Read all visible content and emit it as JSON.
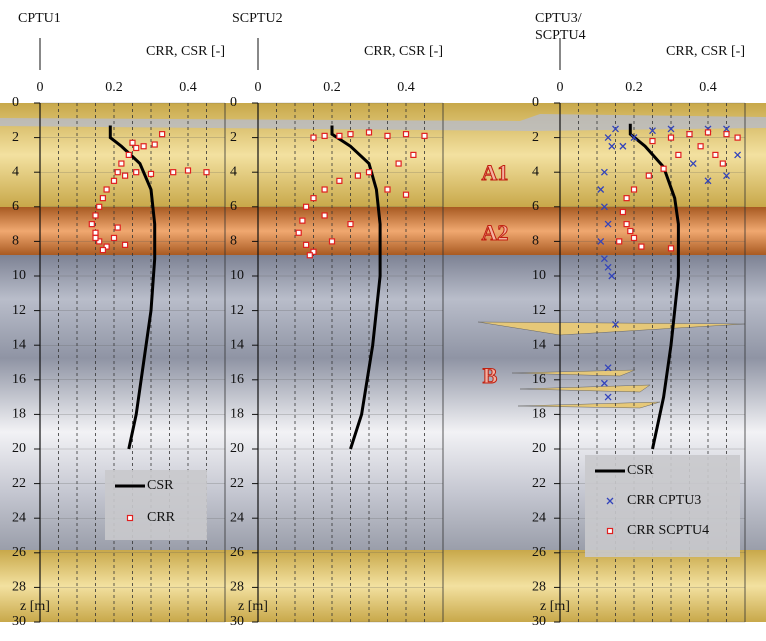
{
  "chart_data": [
    {
      "type": "scatter",
      "title": "CPTU1",
      "xlabel": "CRR, CSR [-]",
      "ylabel": "z [m]",
      "xlim": [
        0,
        0.5
      ],
      "xticks": [
        0,
        0.2,
        0.4
      ],
      "xminorticks": [
        0.05,
        0.1,
        0.15,
        0.25,
        0.3,
        0.35,
        0.45
      ],
      "ylim": [
        0,
        30
      ],
      "yticks": [
        0,
        2,
        4,
        6,
        8,
        10,
        12,
        14,
        16,
        18,
        20,
        22,
        24,
        26,
        28,
        30
      ],
      "y_inverted": true,
      "grid": true,
      "legend": true,
      "series": [
        {
          "name": "CSR",
          "color": "#000000",
          "style": "line",
          "x": [
            0.19,
            0.19,
            0.22,
            0.27,
            0.3,
            0.31,
            0.31,
            0.3,
            0.28,
            0.26,
            0.24
          ],
          "values": [
            1.3,
            2,
            2.5,
            3.5,
            5,
            7,
            9,
            12,
            15,
            18,
            20
          ]
        },
        {
          "name": "CRR",
          "color": "#e02020",
          "style": "square",
          "x": [
            0.26,
            0.25,
            0.24,
            0.28,
            0.31,
            0.33,
            0.22,
            0.21,
            0.2,
            0.23,
            0.26,
            0.3,
            0.36,
            0.4,
            0.45,
            0.18,
            0.17,
            0.16,
            0.15,
            0.14,
            0.15,
            0.16,
            0.18,
            0.2,
            0.21,
            0.23,
            0.17,
            0.15
          ],
          "values": [
            2.6,
            2.3,
            3.0,
            2.5,
            2.4,
            1.8,
            3.5,
            4.0,
            4.5,
            4.2,
            4.0,
            4.1,
            4.0,
            3.9,
            4.0,
            5.0,
            5.5,
            6.0,
            6.5,
            7.0,
            7.5,
            8.0,
            8.3,
            7.8,
            7.2,
            8.2,
            8.5,
            7.8
          ]
        }
      ]
    },
    {
      "type": "scatter",
      "title": "SCPTU2",
      "xlabel": "CRR, CSR [-]",
      "ylabel": "z [m]",
      "xlim": [
        0,
        0.5
      ],
      "xticks": [
        0,
        0.2,
        0.4
      ],
      "xminorticks": [
        0.05,
        0.1,
        0.15,
        0.25,
        0.3,
        0.35,
        0.45
      ],
      "ylim": [
        0,
        30
      ],
      "yticks": [
        0,
        2,
        4,
        6,
        8,
        10,
        12,
        14,
        16,
        18,
        20,
        22,
        24,
        26,
        28,
        30
      ],
      "y_inverted": true,
      "grid": true,
      "legend": false,
      "series": [
        {
          "name": "CSR",
          "color": "#000000",
          "style": "line",
          "x": [
            0.2,
            0.2,
            0.25,
            0.3,
            0.32,
            0.33,
            0.33,
            0.31,
            0.28,
            0.25
          ],
          "values": [
            1.3,
            1.8,
            2.5,
            3.5,
            5,
            7,
            10,
            14,
            18,
            20
          ]
        },
        {
          "name": "CRR",
          "color": "#e02020",
          "style": "square",
          "x": [
            0.15,
            0.18,
            0.22,
            0.25,
            0.3,
            0.35,
            0.4,
            0.45,
            0.42,
            0.38,
            0.3,
            0.27,
            0.22,
            0.18,
            0.15,
            0.13,
            0.12,
            0.11,
            0.13,
            0.15,
            0.2,
            0.25,
            0.18,
            0.14,
            0.35,
            0.4
          ],
          "values": [
            2.0,
            1.9,
            1.9,
            1.8,
            1.7,
            1.9,
            1.8,
            1.9,
            3.0,
            3.5,
            4.0,
            4.2,
            4.5,
            5.0,
            5.5,
            6.0,
            6.8,
            7.5,
            8.2,
            8.6,
            8.0,
            7.0,
            6.5,
            8.8,
            5.0,
            5.3
          ]
        }
      ]
    },
    {
      "type": "scatter",
      "title": "CPTU3/ SCPTU4",
      "xlabel": "CRR, CSR [-]",
      "ylabel": "z [m]",
      "xlim": [
        0,
        0.5
      ],
      "xticks": [
        0,
        0.2,
        0.4
      ],
      "xminorticks": [
        0.05,
        0.1,
        0.15,
        0.25,
        0.3,
        0.35,
        0.45
      ],
      "ylim": [
        0,
        30
      ],
      "yticks": [
        0,
        2,
        4,
        6,
        8,
        10,
        12,
        14,
        16,
        18,
        20,
        22,
        24,
        26,
        28,
        30
      ],
      "y_inverted": true,
      "grid": true,
      "legend": true,
      "annotations": [
        "A1",
        "A2",
        "B"
      ],
      "series": [
        {
          "name": "CSR",
          "color": "#000000",
          "style": "line",
          "x": [
            0.19,
            0.19,
            0.23,
            0.28,
            0.31,
            0.32,
            0.32,
            0.3,
            0.28,
            0.25
          ],
          "values": [
            1.2,
            1.8,
            2.5,
            3.7,
            5.5,
            7,
            10,
            14,
            17,
            20
          ]
        },
        {
          "name": "CRR CPTU3",
          "color": "#3344bb",
          "style": "cross",
          "x": [
            0.13,
            0.15,
            0.17,
            0.2,
            0.25,
            0.3,
            0.35,
            0.4,
            0.45,
            0.48,
            0.12,
            0.11,
            0.12,
            0.13,
            0.11,
            0.12,
            0.13,
            0.14,
            0.15,
            0.13,
            0.12,
            0.13,
            0.14,
            0.4,
            0.45,
            0.36
          ],
          "values": [
            2.0,
            1.5,
            2.5,
            2.0,
            1.6,
            1.5,
            1.8,
            1.5,
            1.5,
            3.0,
            4.0,
            5.0,
            6.0,
            7.0,
            8.0,
            9.0,
            9.5,
            10.0,
            12.8,
            15.3,
            16.2,
            17.0,
            2.5,
            4.5,
            4.2,
            3.5
          ]
        },
        {
          "name": "CRR SCPTU4",
          "color": "#e02020",
          "style": "square",
          "x": [
            0.25,
            0.3,
            0.35,
            0.4,
            0.45,
            0.48,
            0.38,
            0.32,
            0.28,
            0.24,
            0.2,
            0.18,
            0.17,
            0.18,
            0.2,
            0.22,
            0.3,
            0.16,
            0.19,
            0.44,
            0.42
          ],
          "values": [
            2.2,
            2.0,
            1.8,
            1.7,
            1.8,
            2.0,
            2.5,
            3.0,
            3.8,
            4.2,
            5.0,
            5.5,
            6.3,
            7.0,
            7.8,
            8.3,
            8.4,
            8.0,
            7.4,
            3.5,
            3.0
          ]
        }
      ]
    }
  ]
}
